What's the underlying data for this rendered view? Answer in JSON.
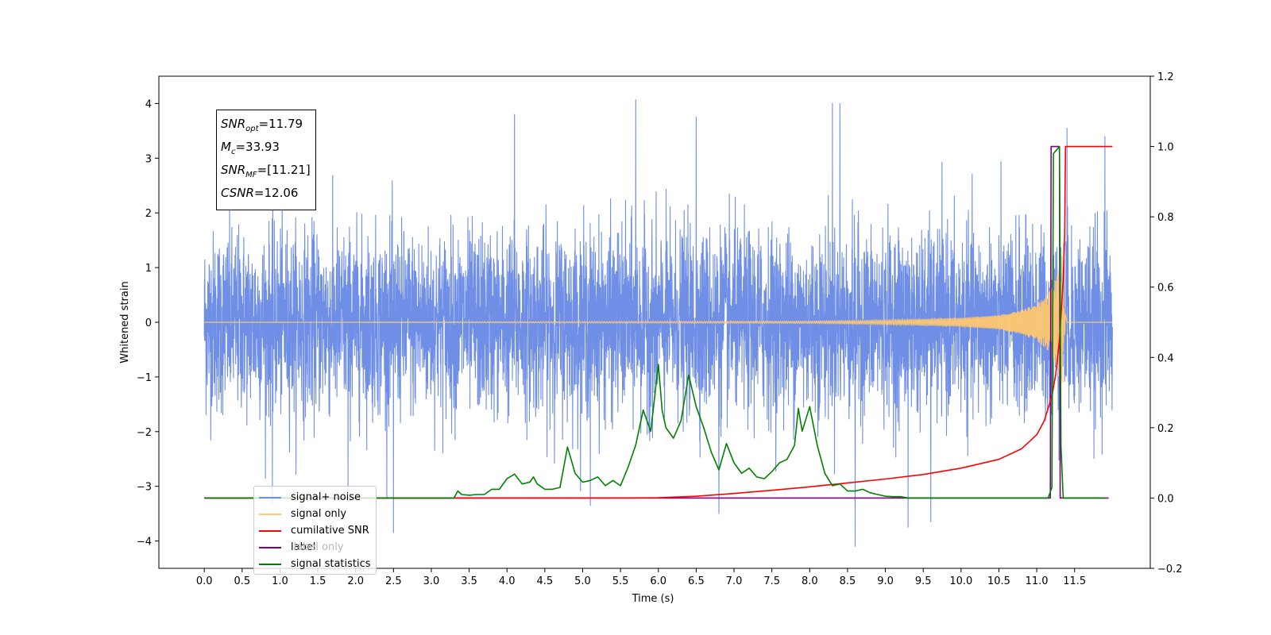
{
  "chart_data": {
    "type": "line",
    "xlabel": "Time (s)",
    "ylabel": "Whitened strain",
    "xlim": [
      -0.6,
      12.5
    ],
    "ylim": [
      -4.5,
      4.5
    ],
    "ylim_right": [
      -0.2,
      1.2
    ],
    "x_ticks": [
      "0.0",
      "0.5",
      "1.0",
      "1.5",
      "2.0",
      "2.5",
      "3.0",
      "3.5",
      "4.0",
      "4.5",
      "5.0",
      "5.5",
      "6.0",
      "6.5",
      "7.0",
      "7.5",
      "8.0",
      "8.5",
      "9.0",
      "9.5",
      "10.0",
      "10.5",
      "11.0",
      "11.5"
    ],
    "y_ticks": [
      "−4",
      "−3",
      "−2",
      "−1",
      "0",
      "1",
      "2",
      "3",
      "4"
    ],
    "y_ticks_right": [
      "−0.2",
      "0.0",
      "0.2",
      "0.4",
      "0.6",
      "0.8",
      "1.0",
      "1.2"
    ],
    "info_box": [
      {
        "name": "SNR",
        "sub": "opt",
        "value": "=11.79"
      },
      {
        "name": "M",
        "sub": "c",
        "value": "=33.93"
      },
      {
        "name": "SNR",
        "sub": "MF",
        "value": "=[11.21]"
      },
      {
        "name": "CSNR",
        "sub": "",
        "value": "=12.06"
      }
    ],
    "legend_position": "lower left",
    "legend": [
      {
        "label": "signal+ noise",
        "color": "#6f8ee6"
      },
      {
        "label": "signal only",
        "color": "#ffc870"
      },
      {
        "label": "cumilative SNR",
        "color": "#ff0000"
      },
      {
        "label": "label",
        "color": "#800080"
      },
      {
        "label": "signal statistics",
        "color": "#008000"
      }
    ],
    "hidden_legend_label": "label only",
    "series": [
      {
        "name": "signal+ noise",
        "axis": "left",
        "color": "#6f8ee6",
        "x_range": [
          0.0,
          12.0
        ],
        "envelope_typical": 1.6,
        "spike_peaks": [
          [
            0.9,
            -3.3
          ],
          [
            1.9,
            -3.1
          ],
          [
            2.5,
            -3.85
          ],
          [
            4.1,
            3.8
          ],
          [
            4.1,
            -3.4
          ],
          [
            5.1,
            -3.35
          ],
          [
            5.7,
            4.07
          ],
          [
            6.5,
            3.75
          ],
          [
            6.8,
            -3.5
          ],
          [
            8.3,
            4.0
          ],
          [
            8.4,
            4.0
          ],
          [
            8.6,
            -4.1
          ],
          [
            9.3,
            -3.75
          ],
          [
            9.6,
            -3.65
          ],
          [
            11.4,
            3.55
          ],
          [
            11.4,
            -3.6
          ],
          [
            11.9,
            3.4
          ],
          [
            11.9,
            -3.45
          ]
        ]
      },
      {
        "name": "signal only",
        "axis": "left",
        "color": "#ffc870",
        "x_range": [
          0.0,
          12.0
        ],
        "amplitude": [
          [
            0.0,
            0.0
          ],
          [
            8.0,
            0.02
          ],
          [
            9.0,
            0.04
          ],
          [
            10.0,
            0.08
          ],
          [
            10.5,
            0.13
          ],
          [
            10.8,
            0.22
          ],
          [
            11.0,
            0.35
          ],
          [
            11.1,
            0.45
          ],
          [
            11.2,
            0.62
          ],
          [
            11.25,
            0.8
          ],
          [
            11.3,
            1.05
          ],
          [
            11.33,
            1.4
          ],
          [
            11.36,
            0.3
          ],
          [
            11.4,
            0.0
          ],
          [
            12.0,
            0.0
          ]
        ]
      },
      {
        "name": "cumilative SNR",
        "axis": "right",
        "color": "#ff0000",
        "x": [
          0.0,
          5.5,
          6.0,
          6.5,
          7.0,
          7.5,
          8.0,
          8.5,
          9.0,
          9.5,
          10.0,
          10.5,
          10.8,
          11.0,
          11.1,
          11.2,
          11.25,
          11.3,
          11.33,
          11.35,
          11.37,
          11.38,
          11.4,
          11.45,
          12.0
        ],
        "y": [
          0.0,
          0.0,
          0.001,
          0.005,
          0.013,
          0.022,
          0.032,
          0.043,
          0.054,
          0.067,
          0.085,
          0.11,
          0.14,
          0.18,
          0.22,
          0.29,
          0.35,
          0.45,
          0.55,
          0.62,
          0.75,
          1.0,
          1.0,
          1.0,
          1.0
        ]
      },
      {
        "name": "label",
        "axis": "right",
        "color": "#800080",
        "x": [
          0.0,
          11.18,
          11.19,
          11.3,
          11.31,
          11.95
        ],
        "y": [
          0.0,
          0.0,
          1.0,
          1.0,
          0.0,
          0.0
        ]
      },
      {
        "name": "signal statistics",
        "axis": "right",
        "color": "#008000",
        "x": [
          0.0,
          3.2,
          3.3,
          3.35,
          3.4,
          3.5,
          3.6,
          3.7,
          3.8,
          3.9,
          4.0,
          4.1,
          4.2,
          4.3,
          4.35,
          4.4,
          4.5,
          4.6,
          4.7,
          4.8,
          4.9,
          5.0,
          5.1,
          5.2,
          5.3,
          5.4,
          5.5,
          5.6,
          5.7,
          5.8,
          5.9,
          6.0,
          6.05,
          6.1,
          6.2,
          6.3,
          6.4,
          6.5,
          6.6,
          6.7,
          6.8,
          6.9,
          7.0,
          7.1,
          7.2,
          7.3,
          7.4,
          7.5,
          7.6,
          7.7,
          7.8,
          7.85,
          7.9,
          8.0,
          8.1,
          8.2,
          8.3,
          8.4,
          8.5,
          8.6,
          8.7,
          8.8,
          8.9,
          9.0,
          9.1,
          9.2,
          9.3,
          10.0,
          11.0,
          11.15,
          11.2,
          11.22,
          11.3,
          11.32,
          11.35,
          11.36,
          11.9
        ],
        "y": [
          0.0,
          0.0,
          0.0,
          0.02,
          0.01,
          0.008,
          0.01,
          0.01,
          0.025,
          0.025,
          0.055,
          0.068,
          0.04,
          0.045,
          0.06,
          0.04,
          0.025,
          0.025,
          0.03,
          0.145,
          0.07,
          0.045,
          0.05,
          0.06,
          0.035,
          0.05,
          0.035,
          0.088,
          0.15,
          0.25,
          0.19,
          0.38,
          0.25,
          0.2,
          0.17,
          0.22,
          0.35,
          0.26,
          0.2,
          0.13,
          0.08,
          0.155,
          0.1,
          0.07,
          0.085,
          0.06,
          0.055,
          0.075,
          0.1,
          0.11,
          0.15,
          0.255,
          0.19,
          0.26,
          0.15,
          0.07,
          0.035,
          0.04,
          0.02,
          0.02,
          0.025,
          0.015,
          0.01,
          0.005,
          0.004,
          0.004,
          0.0,
          0.0,
          0.0,
          0.0,
          0.03,
          0.98,
          1.0,
          0.15,
          0.0,
          0.0,
          0.0
        ]
      }
    ]
  }
}
